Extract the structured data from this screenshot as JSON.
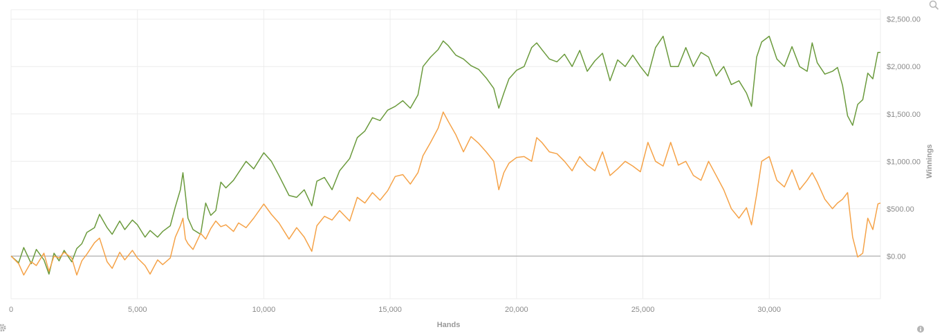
{
  "chart_data": {
    "type": "line",
    "xlabel": "Hands",
    "ylabel": "Winnings",
    "xlim": [
      0,
      34400
    ],
    "ylim": [
      -450,
      2600
    ],
    "x_ticks": [
      0,
      5000,
      10000,
      15000,
      20000,
      25000,
      30000
    ],
    "x_tick_labels": [
      "0",
      "5,000",
      "10,000",
      "15,000",
      "20,000",
      "25,000",
      "30,000"
    ],
    "y_ticks": [
      0,
      500,
      1000,
      1500,
      2000,
      2500
    ],
    "y_tick_labels": [
      "$0.00",
      "$500.00",
      "$1,000.00",
      "$1,500.00",
      "$2,000.00",
      "$2,500.00"
    ],
    "grid": true,
    "legend": "none",
    "series": [
      {
        "color": "#6a9a3c",
        "x": [
          0,
          300,
          500,
          800,
          1000,
          1300,
          1500,
          1700,
          1900,
          2100,
          2400,
          2600,
          2800,
          3000,
          3300,
          3500,
          3800,
          4000,
          4300,
          4500,
          4800,
          5000,
          5300,
          5500,
          5800,
          6000,
          6300,
          6500,
          6700,
          6800,
          6900,
          7000,
          7200,
          7500,
          7700,
          7900,
          8100,
          8300,
          8500,
          8800,
          9000,
          9300,
          9600,
          10000,
          10300,
          10600,
          11000,
          11300,
          11600,
          11900,
          12100,
          12400,
          12700,
          13000,
          13400,
          13700,
          14000,
          14300,
          14600,
          14900,
          15200,
          15500,
          15800,
          16100,
          16300,
          16600,
          16900,
          17100,
          17300,
          17600,
          17900,
          18200,
          18500,
          18800,
          19100,
          19300,
          19500,
          19700,
          20000,
          20300,
          20600,
          20800,
          21000,
          21300,
          21600,
          21900,
          22200,
          22500,
          22800,
          23100,
          23400,
          23700,
          24000,
          24300,
          24600,
          24900,
          25200,
          25500,
          25800,
          26100,
          26400,
          26700,
          27000,
          27300,
          27600,
          27900,
          28200,
          28500,
          28800,
          29100,
          29300,
          29500,
          29700,
          30000,
          30300,
          30600,
          30900,
          31200,
          31500,
          31700,
          31900,
          32200,
          32500,
          32700,
          32900,
          33100,
          33300,
          33500,
          33700,
          33900,
          34100,
          34300,
          34400
        ],
        "y": [
          0,
          -70,
          90,
          -80,
          70,
          -40,
          -190,
          30,
          -50,
          60,
          -60,
          80,
          130,
          250,
          300,
          440,
          300,
          230,
          370,
          280,
          380,
          330,
          200,
          270,
          200,
          260,
          320,
          520,
          700,
          880,
          650,
          400,
          280,
          230,
          560,
          430,
          480,
          780,
          720,
          800,
          880,
          1000,
          920,
          1090,
          1000,
          850,
          640,
          620,
          700,
          530,
          790,
          830,
          700,
          900,
          1030,
          1250,
          1320,
          1460,
          1430,
          1540,
          1580,
          1640,
          1560,
          1700,
          2000,
          2100,
          2180,
          2270,
          2220,
          2120,
          2080,
          2010,
          1970,
          1880,
          1770,
          1560,
          1720,
          1870,
          1960,
          2000,
          2200,
          2250,
          2180,
          2080,
          2050,
          2130,
          2000,
          2170,
          1950,
          2060,
          2140,
          1850,
          2070,
          2000,
          2120,
          2000,
          1900,
          2200,
          2320,
          2000,
          2000,
          2200,
          2000,
          2150,
          2100,
          1900,
          2000,
          1810,
          1850,
          1720,
          1580,
          2100,
          2260,
          2320,
          2080,
          2000,
          2210,
          2000,
          1950,
          2250,
          2040,
          1920,
          1950,
          1990,
          1800,
          1480,
          1380,
          1600,
          1650,
          1930,
          1870,
          2150,
          2150
        ]
      },
      {
        "color": "#f5a247",
        "x": [
          0,
          300,
          500,
          800,
          1000,
          1300,
          1500,
          1700,
          1900,
          2100,
          2400,
          2600,
          2800,
          3000,
          3300,
          3500,
          3800,
          4000,
          4300,
          4500,
          4800,
          5000,
          5300,
          5500,
          5800,
          6000,
          6300,
          6500,
          6700,
          6800,
          6900,
          7000,
          7200,
          7500,
          7700,
          7900,
          8100,
          8300,
          8500,
          8800,
          9000,
          9300,
          9600,
          10000,
          10300,
          10600,
          11000,
          11300,
          11600,
          11900,
          12100,
          12400,
          12700,
          13000,
          13400,
          13700,
          14000,
          14300,
          14600,
          14900,
          15200,
          15500,
          15800,
          16100,
          16300,
          16600,
          16900,
          17100,
          17300,
          17600,
          17900,
          18200,
          18500,
          18800,
          19100,
          19300,
          19500,
          19700,
          20000,
          20300,
          20600,
          20800,
          21000,
          21300,
          21600,
          21900,
          22200,
          22500,
          22800,
          23100,
          23400,
          23700,
          24000,
          24300,
          24600,
          24900,
          25200,
          25500,
          25800,
          26100,
          26400,
          26700,
          27000,
          27300,
          27600,
          27900,
          28200,
          28500,
          28800,
          29100,
          29300,
          29500,
          29700,
          30000,
          30300,
          30600,
          30900,
          31200,
          31500,
          31700,
          31900,
          32200,
          32500,
          32700,
          32900,
          33100,
          33300,
          33500,
          33700,
          33900,
          34100,
          34300,
          34400
        ],
        "y": [
          0,
          -80,
          -200,
          -60,
          -100,
          30,
          -160,
          0,
          -20,
          40,
          -20,
          -200,
          -50,
          20,
          140,
          190,
          -60,
          -130,
          40,
          -40,
          60,
          -20,
          -100,
          -190,
          -40,
          -90,
          -20,
          200,
          320,
          400,
          180,
          130,
          70,
          240,
          180,
          290,
          370,
          310,
          330,
          260,
          350,
          300,
          400,
          550,
          440,
          350,
          180,
          300,
          200,
          50,
          320,
          420,
          380,
          480,
          370,
          620,
          560,
          670,
          590,
          690,
          840,
          860,
          760,
          880,
          1060,
          1200,
          1350,
          1520,
          1420,
          1280,
          1100,
          1260,
          1190,
          1100,
          1000,
          700,
          880,
          980,
          1040,
          1050,
          1000,
          1250,
          1200,
          1100,
          1080,
          1000,
          900,
          1050,
          960,
          900,
          1100,
          850,
          920,
          1000,
          950,
          890,
          1200,
          1000,
          950,
          1200,
          960,
          1000,
          850,
          800,
          1000,
          850,
          700,
          500,
          400,
          510,
          330,
          650,
          1000,
          1050,
          800,
          730,
          910,
          700,
          800,
          880,
          780,
          600,
          500,
          560,
          600,
          670,
          200,
          -10,
          30,
          400,
          280,
          550,
          560
        ]
      }
    ]
  }
}
